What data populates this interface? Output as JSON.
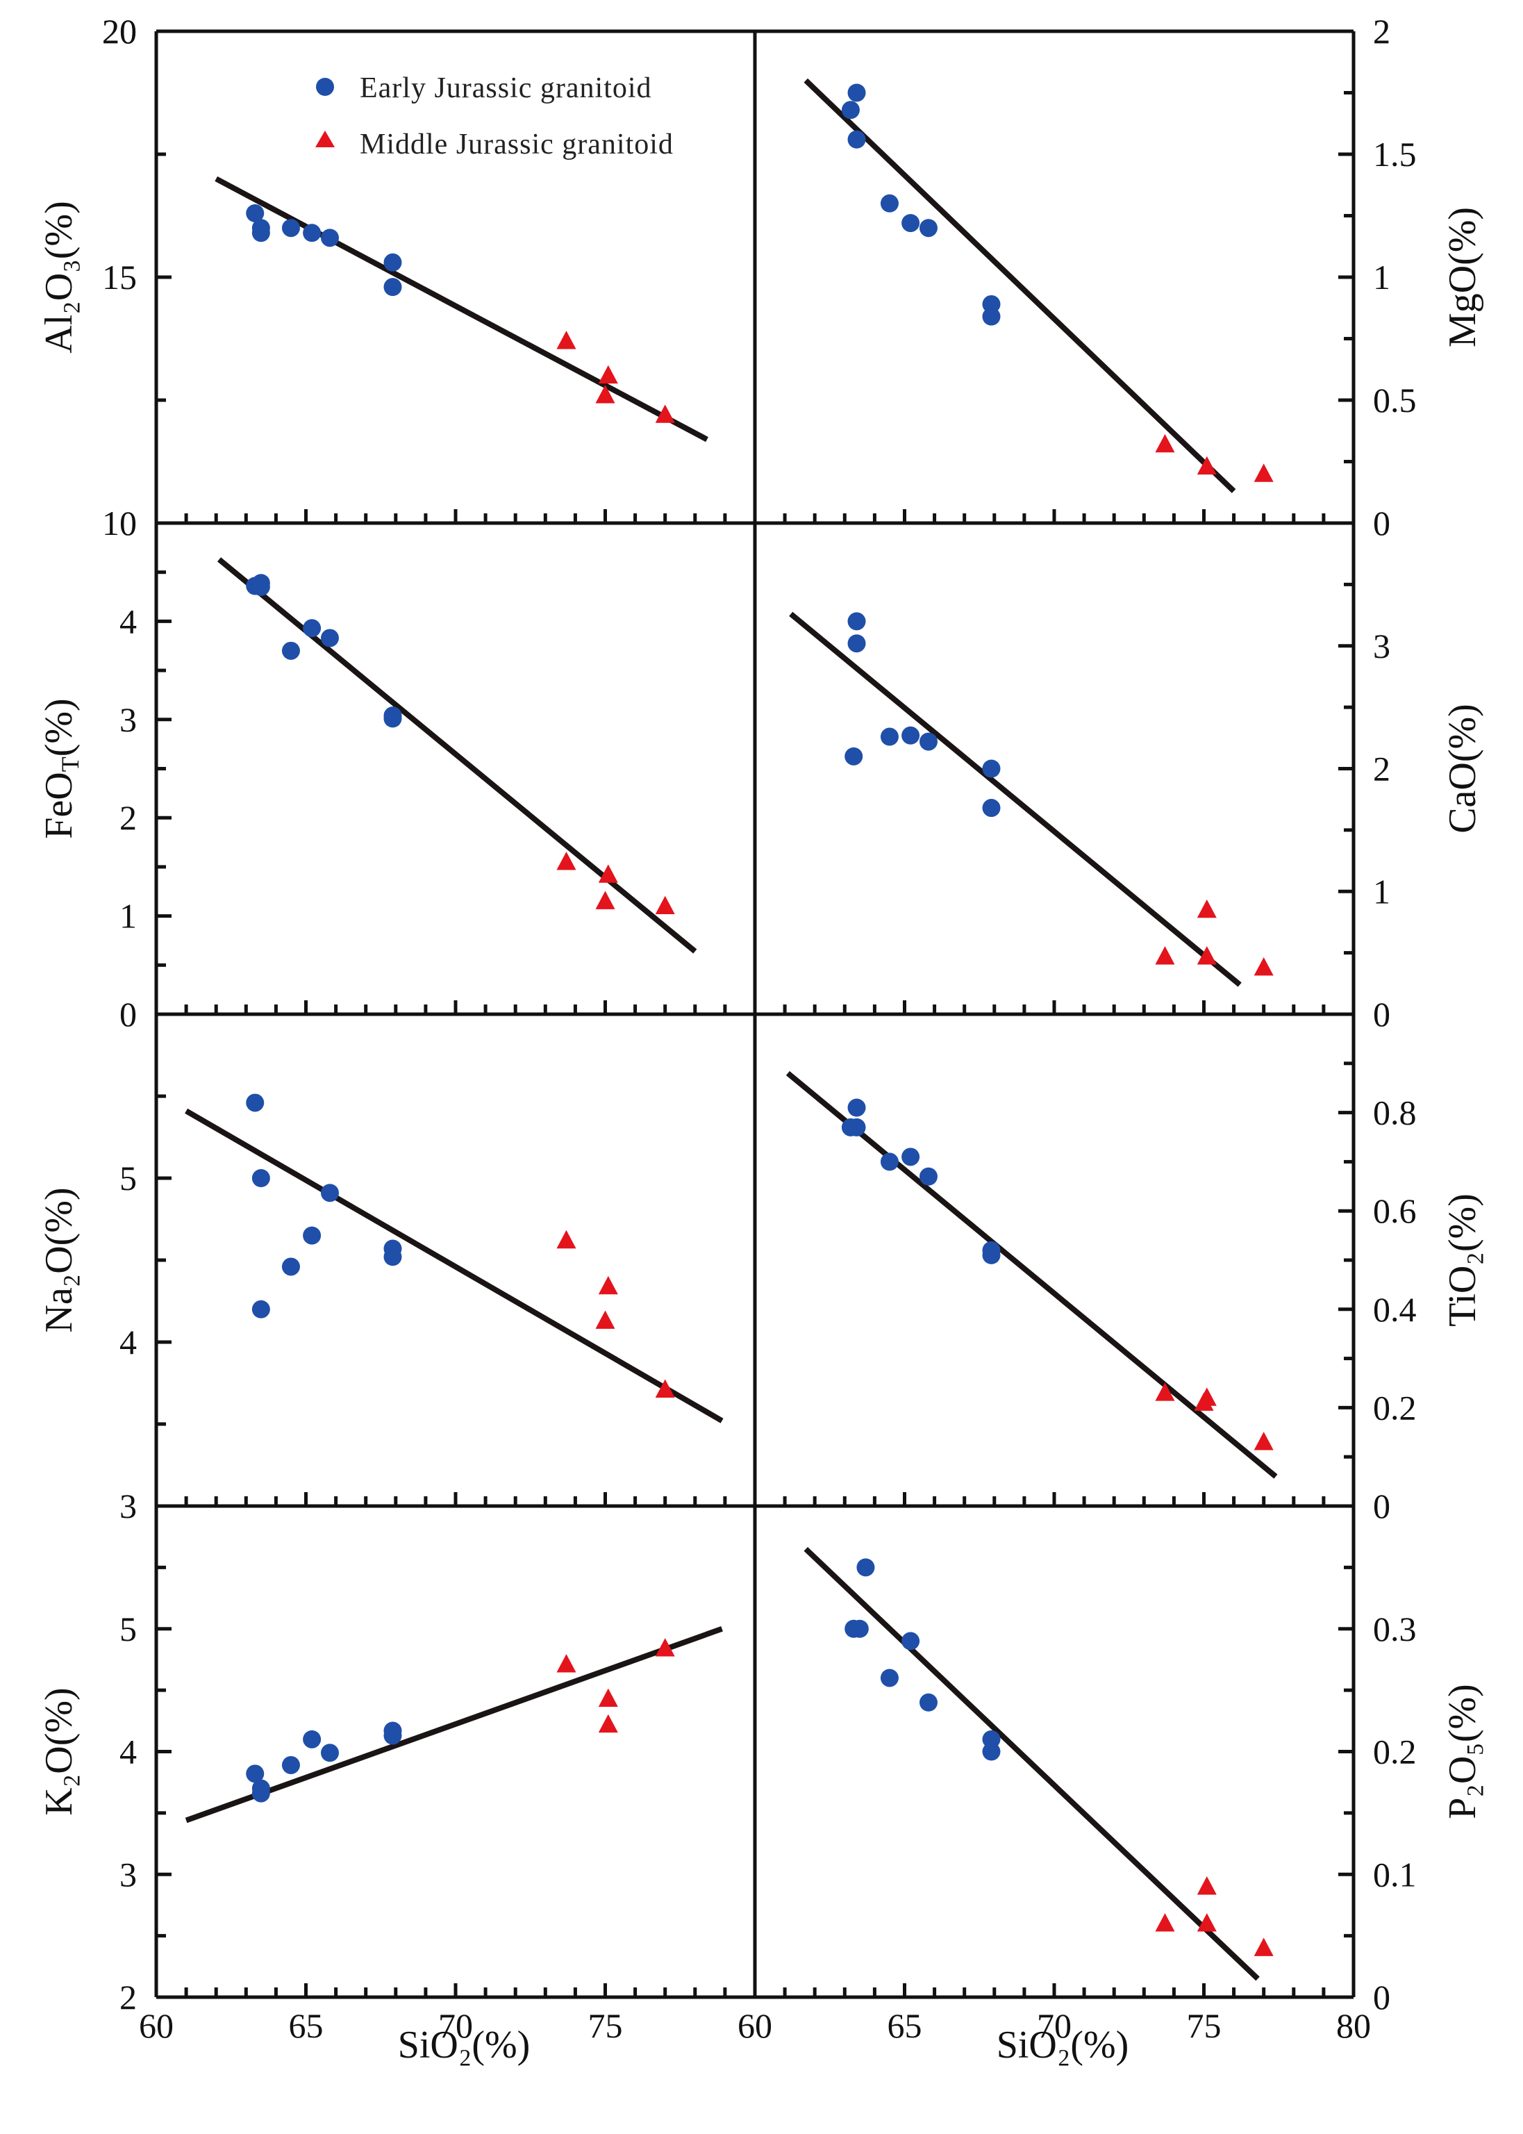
{
  "figure": {
    "x_axis_label": "SiO₂(%)",
    "colors": {
      "early": "#1f4fa8",
      "middle": "#e3141c",
      "line": "#1a1414",
      "axis": "#111111"
    }
  },
  "legend": [
    {
      "key": "early",
      "label": "Early Jurassic granitoid",
      "marker": "circle"
    },
    {
      "key": "middle",
      "label": "Middle Jurassic granitoid",
      "marker": "triangle"
    }
  ],
  "chart_data": [
    {
      "id": "al2o3",
      "type": "scatter",
      "ylabel": "Al₂O₃(%)",
      "xlim": [
        60,
        80
      ],
      "ylim": [
        10,
        20
      ],
      "x_ticks": [
        60,
        65,
        70,
        75
      ],
      "y_ticks": [
        10,
        15,
        20
      ],
      "series": [
        {
          "name": "Early Jurassic granitoid",
          "points": [
            [
              63.3,
              16.3
            ],
            [
              63.5,
              16.0
            ],
            [
              63.5,
              15.9
            ],
            [
              64.5,
              16.0
            ],
            [
              65.2,
              15.9
            ],
            [
              65.8,
              15.8
            ],
            [
              67.9,
              15.3
            ],
            [
              67.9,
              14.8
            ]
          ]
        },
        {
          "name": "Middle Jurassic granitoid",
          "points": [
            [
              73.7,
              13.7
            ],
            [
              75.1,
              13.0
            ],
            [
              75.0,
              12.6
            ],
            [
              77.0,
              12.2
            ]
          ]
        }
      ],
      "fit_line": [
        [
          62.0,
          17.0
        ],
        [
          78.4,
          11.7
        ]
      ]
    },
    {
      "id": "mgo",
      "type": "scatter",
      "ylabel": "MgO(%)",
      "xlim": [
        60,
        80
      ],
      "ylim": [
        0,
        2
      ],
      "x_ticks": [
        65,
        70,
        75,
        80
      ],
      "y_ticks": [
        0,
        0.5,
        1,
        1.5,
        2
      ],
      "series": [
        {
          "name": "Early Jurassic granitoid",
          "points": [
            [
              63.4,
              1.75
            ],
            [
              63.2,
              1.68
            ],
            [
              63.4,
              1.56
            ],
            [
              64.5,
              1.3
            ],
            [
              65.2,
              1.22
            ],
            [
              65.8,
              1.2
            ],
            [
              67.9,
              0.89
            ],
            [
              67.9,
              0.84
            ]
          ]
        },
        {
          "name": "Middle Jurassic granitoid",
          "points": [
            [
              73.7,
              0.32
            ],
            [
              75.1,
              0.23
            ],
            [
              77.0,
              0.2
            ]
          ]
        }
      ],
      "fit_line": [
        [
          61.7,
          1.8
        ],
        [
          76.0,
          0.13
        ]
      ]
    },
    {
      "id": "feot",
      "type": "scatter",
      "ylabel": "FeOT(%)",
      "ylabel_main": "FeO",
      "ylabel_sub": "T",
      "ylabel_suffix": "(%)",
      "xlim": [
        60,
        80
      ],
      "ylim": [
        0,
        5
      ],
      "x_ticks": [
        60,
        65,
        70,
        75
      ],
      "y_ticks": [
        0,
        1,
        2,
        3,
        4
      ],
      "series": [
        {
          "name": "Early Jurassic granitoid",
          "points": [
            [
              63.3,
              4.36
            ],
            [
              63.5,
              4.39
            ],
            [
              63.5,
              4.35
            ],
            [
              65.2,
              3.93
            ],
            [
              65.8,
              3.83
            ],
            [
              64.5,
              3.7
            ],
            [
              67.9,
              3.04
            ],
            [
              67.9,
              3.01
            ]
          ]
        },
        {
          "name": "Middle Jurassic granitoid",
          "points": [
            [
              73.7,
              1.55
            ],
            [
              75.1,
              1.42
            ],
            [
              75.0,
              1.15
            ],
            [
              77.0,
              1.1
            ]
          ]
        }
      ],
      "fit_line": [
        [
          62.1,
          4.63
        ],
        [
          78.0,
          0.64
        ]
      ]
    },
    {
      "id": "cao",
      "type": "scatter",
      "ylabel": "CaO(%)",
      "xlim": [
        60,
        80
      ],
      "ylim": [
        0,
        4
      ],
      "x_ticks": [
        65,
        70,
        75,
        80
      ],
      "y_ticks": [
        0,
        1,
        2,
        3
      ],
      "series": [
        {
          "name": "Early Jurassic granitoid",
          "points": [
            [
              63.4,
              3.2
            ],
            [
              63.4,
              3.02
            ],
            [
              63.3,
              2.1
            ],
            [
              64.5,
              2.26
            ],
            [
              65.2,
              2.27
            ],
            [
              65.8,
              2.22
            ],
            [
              67.9,
              2.0
            ],
            [
              67.9,
              1.68
            ]
          ]
        },
        {
          "name": "Middle Jurassic granitoid",
          "points": [
            [
              73.7,
              0.47
            ],
            [
              75.1,
              0.85
            ],
            [
              75.1,
              0.47
            ],
            [
              77.0,
              0.38
            ]
          ]
        }
      ],
      "fit_line": [
        [
          61.2,
          3.26
        ],
        [
          76.2,
          0.24
        ]
      ]
    },
    {
      "id": "na2o",
      "type": "scatter",
      "ylabel": "Na₂O(%)",
      "xlim": [
        60,
        80
      ],
      "ylim": [
        3,
        6
      ],
      "x_ticks": [
        60,
        65,
        70,
        75
      ],
      "y_ticks": [
        3,
        4,
        5
      ],
      "series": [
        {
          "name": "Early Jurassic granitoid",
          "points": [
            [
              63.3,
              5.46
            ],
            [
              63.5,
              5.0
            ],
            [
              65.8,
              4.91
            ],
            [
              65.2,
              4.65
            ],
            [
              64.5,
              4.46
            ],
            [
              63.5,
              4.2
            ],
            [
              67.9,
              4.57
            ],
            [
              67.9,
              4.52
            ]
          ]
        },
        {
          "name": "Middle Jurassic granitoid",
          "points": [
            [
              73.7,
              4.62
            ],
            [
              75.1,
              4.34
            ],
            [
              75.0,
              4.13
            ],
            [
              77.0,
              3.71
            ]
          ]
        }
      ],
      "fit_line": [
        [
          61.0,
          5.41
        ],
        [
          78.9,
          3.52
        ]
      ]
    },
    {
      "id": "tio2",
      "type": "scatter",
      "ylabel": "TiO₂(%)",
      "xlim": [
        60,
        80
      ],
      "ylim": [
        0,
        1
      ],
      "x_ticks": [
        65,
        70,
        75,
        80
      ],
      "y_ticks": [
        0,
        0.2,
        0.4,
        0.6,
        0.8
      ],
      "series": [
        {
          "name": "Early Jurassic granitoid",
          "points": [
            [
              63.4,
              0.81
            ],
            [
              63.2,
              0.77
            ],
            [
              63.4,
              0.77
            ],
            [
              64.5,
              0.7
            ],
            [
              65.2,
              0.71
            ],
            [
              65.8,
              0.67
            ],
            [
              67.9,
              0.52
            ],
            [
              67.9,
              0.51
            ]
          ]
        },
        {
          "name": "Middle Jurassic granitoid",
          "points": [
            [
              73.7,
              0.23
            ],
            [
              75.1,
              0.22
            ],
            [
              75.0,
              0.21
            ],
            [
              77.0,
              0.13
            ]
          ]
        }
      ],
      "fit_line": [
        [
          61.1,
          0.88
        ],
        [
          77.4,
          0.06
        ]
      ]
    },
    {
      "id": "k2o",
      "type": "scatter",
      "ylabel": "K₂O(%)",
      "xlim": [
        60,
        80
      ],
      "ylim": [
        2,
        6
      ],
      "x_ticks": [
        60,
        65,
        70,
        75
      ],
      "y_ticks": [
        2,
        3,
        4,
        5
      ],
      "series": [
        {
          "name": "Early Jurassic granitoid",
          "points": [
            [
              63.3,
              3.82
            ],
            [
              63.5,
              3.7
            ],
            [
              63.5,
              3.66
            ],
            [
              64.5,
              3.89
            ],
            [
              65.2,
              4.1
            ],
            [
              65.8,
              3.99
            ],
            [
              67.9,
              4.17
            ],
            [
              67.9,
              4.13
            ]
          ]
        },
        {
          "name": "Middle Jurassic granitoid",
          "points": [
            [
              73.7,
              4.71
            ],
            [
              75.1,
              4.43
            ],
            [
              75.1,
              4.22
            ],
            [
              77.0,
              4.84
            ]
          ]
        }
      ],
      "fit_line": [
        [
          61.0,
          3.44
        ],
        [
          78.9,
          5.0
        ]
      ]
    },
    {
      "id": "p2o5",
      "type": "scatter",
      "ylabel": "P₂O₅(%)",
      "xlim": [
        60,
        80
      ],
      "ylim": [
        0,
        0.4
      ],
      "x_ticks": [
        60,
        65,
        70,
        75,
        80
      ],
      "y_ticks": [
        0,
        0.1,
        0.2,
        0.3
      ],
      "series": [
        {
          "name": "Early Jurassic granitoid",
          "points": [
            [
              63.7,
              0.35
            ],
            [
              63.3,
              0.3
            ],
            [
              63.5,
              0.3
            ],
            [
              65.2,
              0.29
            ],
            [
              64.5,
              0.26
            ],
            [
              65.8,
              0.24
            ],
            [
              67.9,
              0.21
            ],
            [
              67.9,
              0.2
            ]
          ]
        },
        {
          "name": "Middle Jurassic granitoid",
          "points": [
            [
              73.7,
              0.06
            ],
            [
              75.1,
              0.09
            ],
            [
              75.1,
              0.06
            ],
            [
              77.0,
              0.04
            ]
          ]
        }
      ],
      "fit_line": [
        [
          61.7,
          0.365
        ],
        [
          76.8,
          0.015
        ]
      ]
    }
  ]
}
